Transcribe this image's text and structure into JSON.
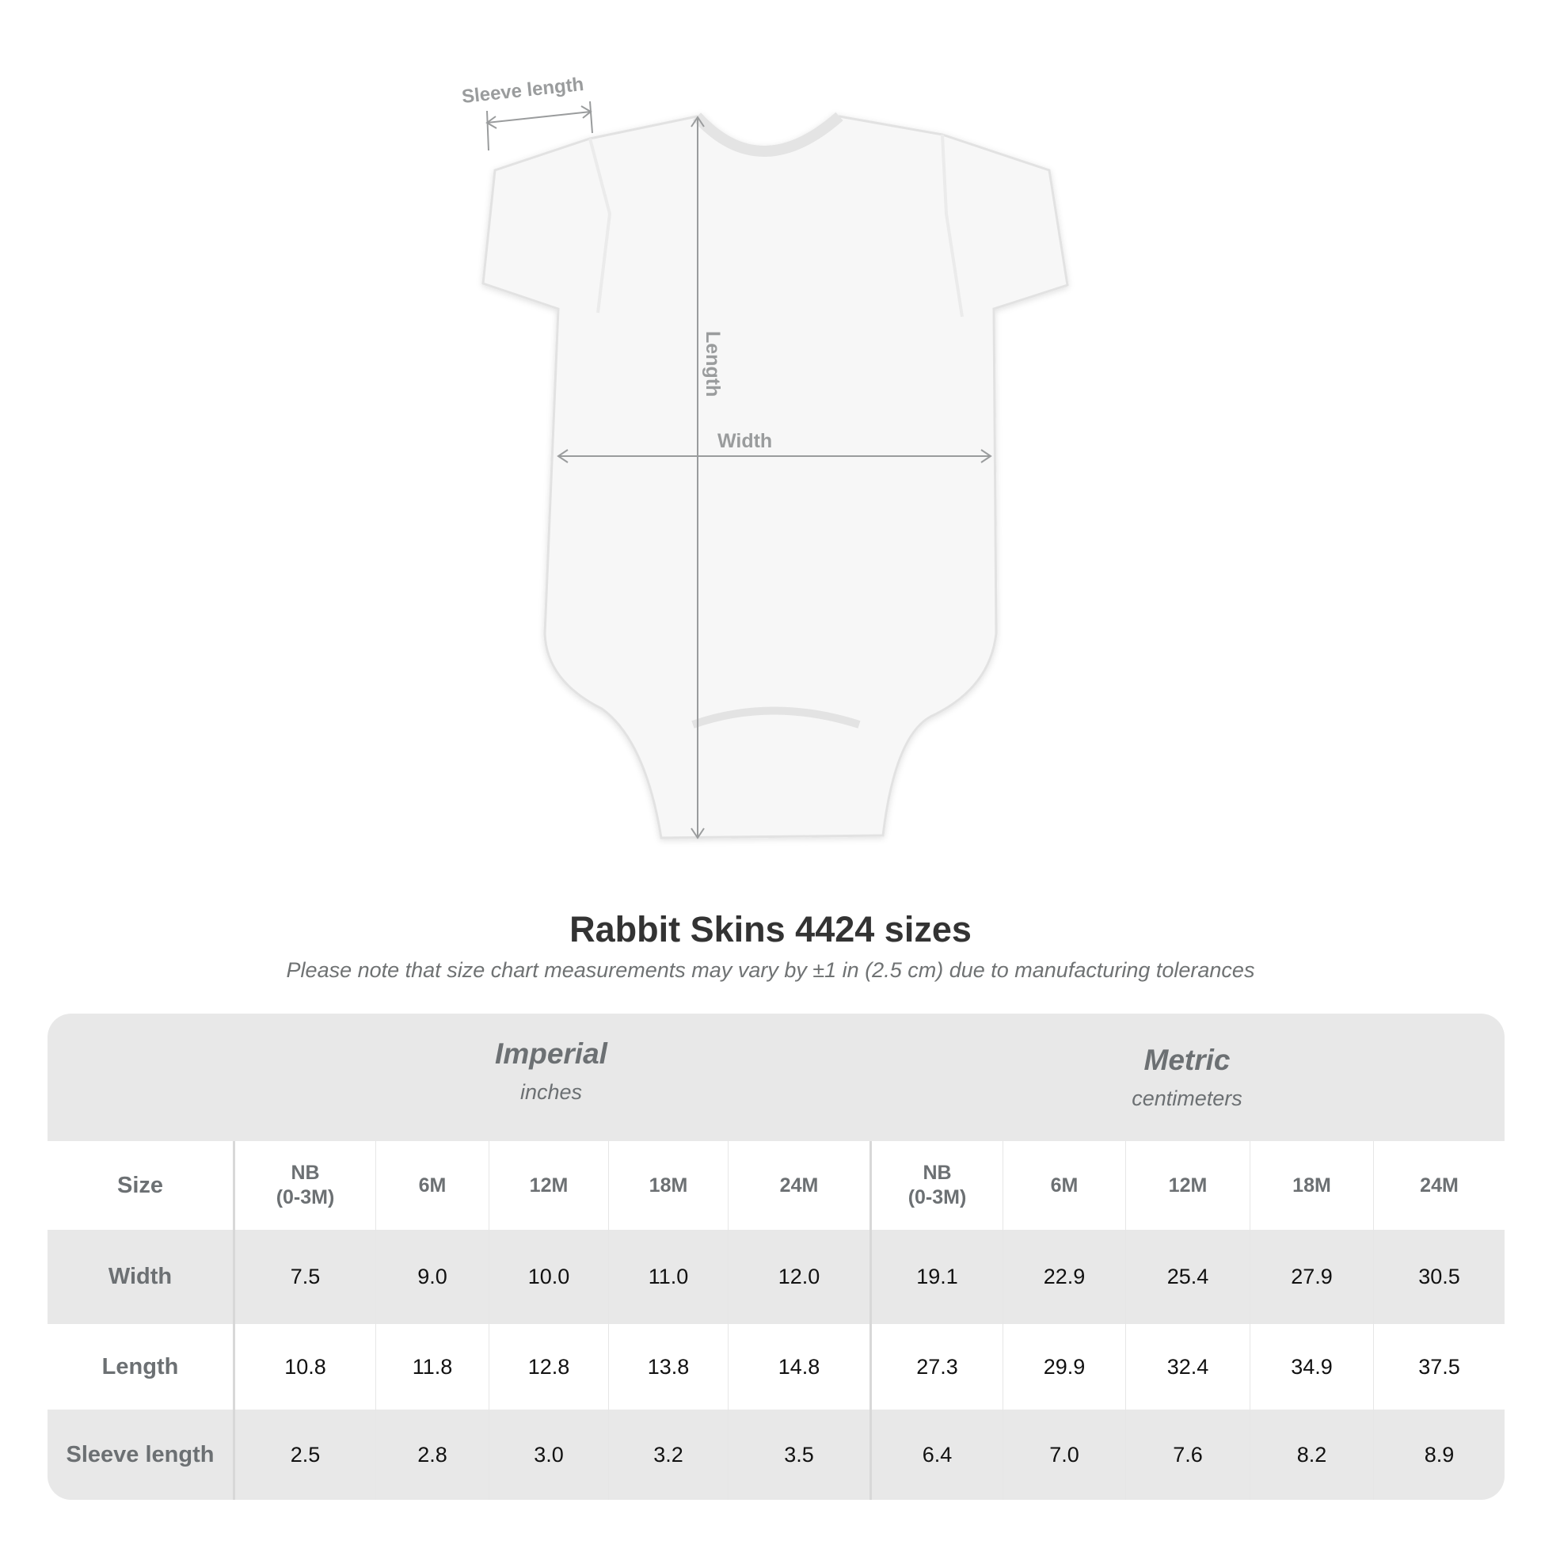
{
  "diagram": {
    "labels": {
      "sleeve": "Sleeve length",
      "length": "Length",
      "width": "Width"
    },
    "line_color": "#9a9c9d"
  },
  "title": "Rabbit Skins 4424 sizes",
  "note": "Please note that size chart measurements may vary by ±1 in (2.5 cm) due to manufacturing tolerances",
  "table": {
    "imperial": {
      "name": "Imperial",
      "unit": "inches"
    },
    "metric": {
      "name": "Metric",
      "unit": "centimeters"
    },
    "size_label": "Size",
    "sizes": [
      "NB\n(0-3M)",
      "6M",
      "12M",
      "18M",
      "24M",
      "NB\n(0-3M)",
      "6M",
      "12M",
      "18M",
      "24M"
    ],
    "rows": [
      {
        "label": "Width",
        "values": [
          "7.5",
          "9.0",
          "10.0",
          "11.0",
          "12.0",
          "19.1",
          "22.9",
          "25.4",
          "27.9",
          "30.5"
        ]
      },
      {
        "label": "Length",
        "values": [
          "10.8",
          "11.8",
          "12.8",
          "13.8",
          "14.8",
          "27.3",
          "29.9",
          "32.4",
          "34.9",
          "37.5"
        ]
      },
      {
        "label": "Sleeve length",
        "values": [
          "2.5",
          "2.8",
          "3.0",
          "3.2",
          "3.5",
          "6.4",
          "7.0",
          "7.6",
          "8.2",
          "8.9"
        ]
      }
    ]
  }
}
